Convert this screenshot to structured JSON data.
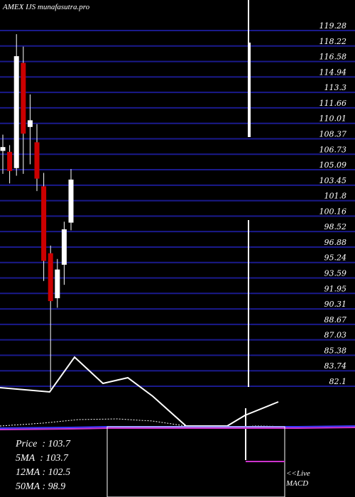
{
  "header": {
    "exchange": "AMEX",
    "symbol": "IJS",
    "site": "munafasutra.pro"
  },
  "chart_data": [
    {
      "type": "candlestick",
      "y_ticks": [
        119.28,
        118.22,
        116.58,
        114.94,
        113.3,
        111.66,
        110.01,
        108.37,
        106.73,
        105.09,
        103.45,
        101.8,
        100.16,
        98.52,
        96.88,
        95.24,
        93.59,
        91.95,
        90.31,
        88.67,
        87.03,
        85.38,
        83.74,
        82.1
      ],
      "ylim": [
        82.1,
        119.28
      ],
      "candles": [
        {
          "o": 106.7,
          "h": 108.4,
          "l": 104.3,
          "c": 107.1
        },
        {
          "o": 106.6,
          "h": 107.3,
          "l": 103.3,
          "c": 104.6
        },
        {
          "o": 104.9,
          "h": 118.9,
          "l": 104.1,
          "c": 116.6
        },
        {
          "o": 115.9,
          "h": 117.6,
          "l": 104.3,
          "c": 108.5
        },
        {
          "o": 109.2,
          "h": 112.6,
          "l": 105.3,
          "c": 109.9
        },
        {
          "o": 107.6,
          "h": 109.5,
          "l": 102.5,
          "c": 103.8
        },
        {
          "o": 103.0,
          "h": 104.4,
          "l": 93.1,
          "c": 95.2
        },
        {
          "o": 96.0,
          "h": 96.8,
          "l": 81.8,
          "c": 91.0
        },
        {
          "o": 91.3,
          "h": 95.4,
          "l": 90.3,
          "c": 94.3
        },
        {
          "o": 94.8,
          "h": 99.3,
          "l": 92.7,
          "c": 98.5
        },
        {
          "o": 99.2,
          "h": 104.8,
          "l": 98.4,
          "c": 103.7
        }
      ],
      "colors": {
        "up": "#ffffff",
        "down": "#cc0000",
        "grid": "#1a1a8c"
      }
    },
    {
      "type": "line",
      "series": [
        {
          "x": [
            0,
            70,
            105,
            145,
            180,
            215,
            262,
            320,
            345,
            392
          ],
          "y": [
            546,
            552,
            503,
            540,
            532,
            558,
            600,
            600,
            585,
            566
          ]
        },
        {
          "x": [
            0,
            60,
            110,
            165,
            215,
            262,
            320,
            360,
            420,
            500
          ],
          "y": [
            600,
            596,
            591,
            590,
            593,
            600,
            602,
            600,
            601,
            600
          ]
        },
        {
          "x": [
            0,
            100,
            150,
            200,
            262,
            320,
            360,
            420,
            500
          ],
          "y": [
            603,
            602,
            601,
            601,
            601,
            601,
            601,
            601,
            600
          ]
        },
        {
          "x": [
            0,
            100,
            150,
            200,
            262,
            320,
            360,
            420,
            500
          ],
          "y": [
            605,
            604,
            603,
            603,
            603,
            603,
            603,
            603,
            602
          ]
        }
      ]
    },
    {
      "type": "line",
      "series": [
        {
          "name": "MACD"
        }
      ]
    }
  ],
  "stats": {
    "price_label": "Price",
    "price_value": "103.7",
    "ma5_label": "5MA",
    "ma5_value": "103.7",
    "ma12_label": "12MA",
    "ma12_value": "102.5",
    "ma50_label": "50MA",
    "ma50_value": "98.9"
  },
  "live": {
    "line1": "<<Live",
    "line2": "MACD"
  }
}
